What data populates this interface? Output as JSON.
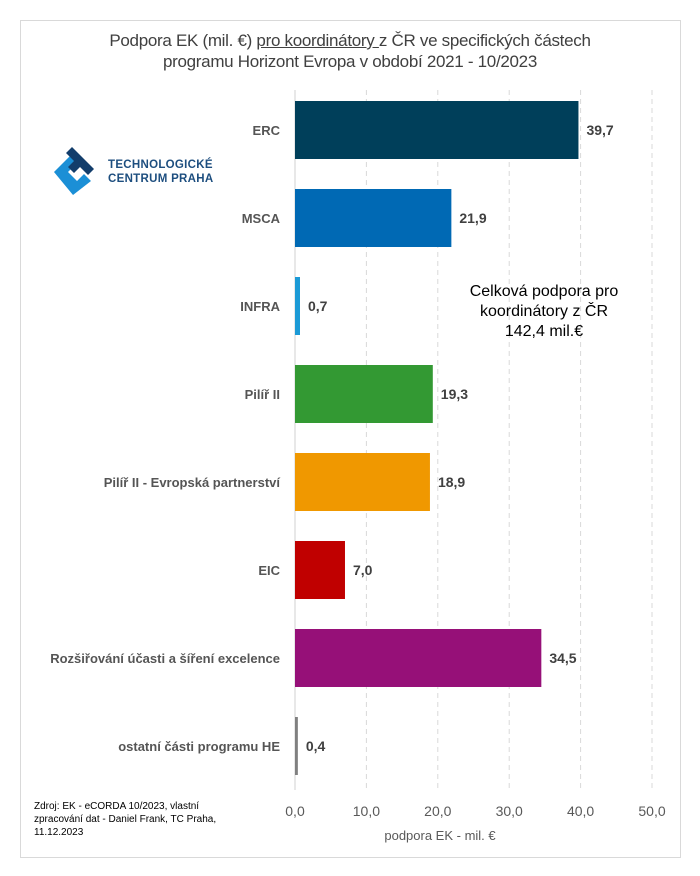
{
  "title": {
    "part1": "Podpora EK (mil. €) ",
    "underlined": "pro koordinátory ",
    "part2": "z ČR ve specifických částech",
    "line2": "programu Horizont Evropa v období 2021 - 10/2023"
  },
  "logo": {
    "line1": "TECHNOLOGICKÉ",
    "line2": "CENTRUM PRAHA"
  },
  "note": {
    "line1": "Celková podpora pro",
    "line2": "koordinátory z ČR",
    "line3": "142,4 mil.€"
  },
  "source": {
    "line1": "Zdroj: EK - eCORDA 10/2023, vlastní",
    "line2": "zpracování dat - Daniel Frank, TC Praha,",
    "line3": "11.12.2023"
  },
  "chart_data": {
    "type": "bar",
    "orientation": "horizontal",
    "title": "Podpora EK (mil. €) pro koordinátory z ČR ve specifických částech programu Horizont Evropa v období 2021 - 10/2023",
    "xlabel": "podpora EK - mil. €",
    "ylabel": "",
    "xlim": [
      0,
      50
    ],
    "grid": true,
    "categories": [
      "ERC",
      "MSCA",
      "INFRA",
      "Pilíř II",
      "Pilíř II - Evropská partnerství",
      "EIC",
      "Rozšiřování účasti a šíření excelence",
      "ostatní části programu HE"
    ],
    "values": [
      39.7,
      21.9,
      0.7,
      19.3,
      18.9,
      7.0,
      34.5,
      0.4
    ],
    "value_labels": [
      "39,7",
      "21,9",
      "0,7",
      "19,3",
      "18,9",
      "7,0",
      "34,5",
      "0,4"
    ],
    "colors": [
      "#003f5a",
      "#0069b4",
      "#1b9ad6",
      "#339933",
      "#f09800",
      "#c00000",
      "#961078",
      "#808080"
    ],
    "ticks": [
      0,
      10,
      20,
      30,
      40,
      50
    ],
    "tick_labels": [
      "0,0",
      "10,0",
      "20,0",
      "30,0",
      "40,0",
      "50,0"
    ]
  }
}
